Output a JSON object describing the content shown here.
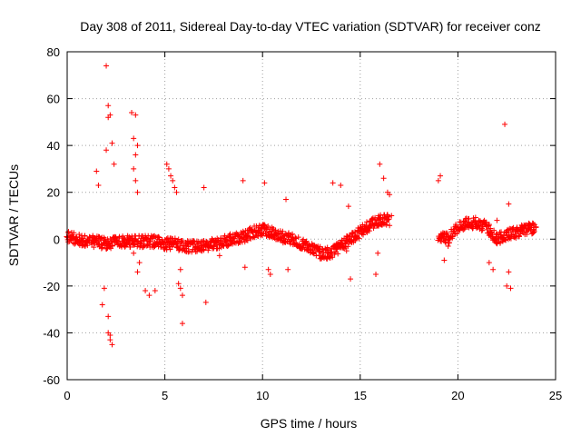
{
  "chart_data": {
    "type": "scatter",
    "title": "Day 308 of 2011, Sidereal Day-to-day VTEC variation (SDTVAR) for receiver conz",
    "xlabel": "GPS time / hours",
    "ylabel": "SDTVAR / TECUs",
    "xlim": [
      0,
      25
    ],
    "ylim": [
      -60,
      80
    ],
    "xticks": [
      0,
      5,
      10,
      15,
      20,
      25
    ],
    "yticks": [
      -60,
      -40,
      -20,
      0,
      20,
      40,
      60,
      80
    ],
    "grid": true,
    "marker": "+",
    "color": "#ff0000",
    "band": {
      "x": [
        0,
        0.5,
        1.0,
        1.5,
        2.0,
        2.5,
        3.0,
        3.5,
        4.0,
        4.5,
        5.0,
        5.5,
        6.0,
        6.5,
        7.0,
        7.5,
        8.0,
        8.5,
        9.0,
        9.5,
        10.0,
        10.5,
        11.0,
        11.5,
        12.0,
        12.5,
        13.0,
        13.5,
        14.0,
        14.5,
        15.0,
        15.5,
        16.0,
        16.5,
        19.0,
        19.5,
        20.0,
        20.5,
        21.0,
        21.5,
        22.0,
        22.5,
        23.0,
        23.5,
        24.0
      ],
      "y": [
        1,
        0,
        -1,
        -1,
        -2,
        -1,
        -1,
        -1,
        -1,
        -1,
        -2,
        -2,
        -3,
        -3,
        -3,
        -2,
        -1,
        0,
        1,
        3,
        4,
        3,
        1,
        0,
        -2,
        -4,
        -6,
        -6,
        -3,
        0,
        3,
        6,
        8,
        8,
        2,
        0,
        5,
        7,
        7,
        5,
        0,
        2,
        3,
        4,
        5
      ]
    },
    "outliers": {
      "x": [
        2.0,
        2.1,
        2.2,
        2.1,
        2.3,
        2.4,
        1.5,
        1.6,
        2.0,
        1.9,
        1.8,
        2.1,
        2.2,
        2.3,
        2.2,
        2.1,
        3.3,
        3.5,
        3.4,
        3.6,
        3.5,
        3.4,
        3.5,
        3.6,
        3.7,
        4.0,
        4.2,
        4.5,
        3.6,
        3.4,
        5.1,
        5.2,
        5.3,
        5.4,
        5.5,
        5.6,
        5.7,
        5.8,
        5.9,
        5.9,
        5.8,
        7.0,
        7.1,
        7.8,
        9.0,
        9.1,
        10.1,
        10.3,
        10.4,
        11.2,
        11.3,
        13.6,
        14.0,
        14.4,
        14.5,
        14.3,
        15.8,
        16.0,
        16.2,
        16.4,
        16.5,
        16.6,
        15.9,
        19.0,
        19.1,
        19.3,
        19.5,
        21.6,
        21.8,
        22.0,
        22.4,
        22.6,
        22.5,
        22.6,
        22.7
      ],
      "y": [
        74,
        57,
        53,
        52,
        41,
        32,
        29,
        23,
        38,
        -21,
        -28,
        -40,
        -41,
        -45,
        -43,
        -33,
        54,
        53,
        43,
        40,
        36,
        30,
        25,
        20,
        -10,
        -22,
        -24,
        -22,
        -14,
        -6,
        32,
        30,
        27,
        25,
        22,
        20,
        -19,
        -21,
        -24,
        -36,
        -13,
        22,
        -27,
        -7,
        25,
        -12,
        24,
        -13,
        -15,
        17,
        -13,
        24,
        23,
        14,
        -17,
        -5,
        -15,
        32,
        26,
        20,
        19,
        10,
        -6,
        25,
        27,
        -9,
        -3,
        -10,
        -13,
        8,
        49,
        15,
        -20,
        -14,
        -21
      ]
    }
  }
}
